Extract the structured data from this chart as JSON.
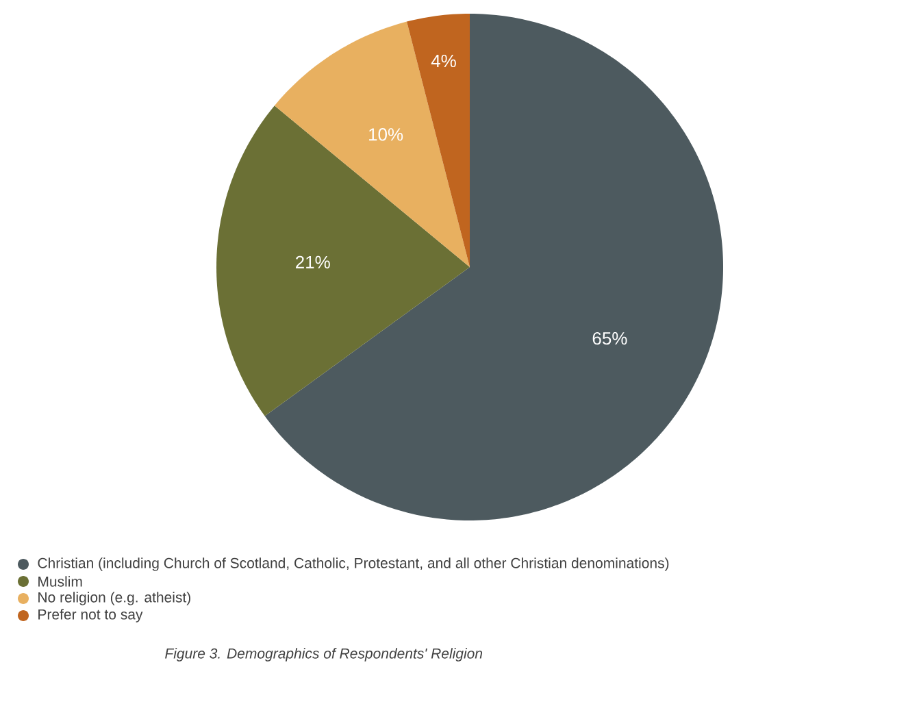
{
  "chart_data": {
    "type": "pie",
    "categories": [
      "Christian (including Church of Scotland, Catholic, Protestant, and all other Christian denominations)",
      "Muslim",
      "No religion (e.g. atheist)",
      "Prefer not to say"
    ],
    "values": [
      65,
      21,
      10,
      4
    ],
    "value_labels": [
      "65%",
      "21%",
      "10%",
      "4%"
    ],
    "colors": [
      "#4d5a5f",
      "#6b7035",
      "#e8b060",
      "#c0651f"
    ],
    "legend": "bottom",
    "annotations": [
      "Figure 3. Demographics of Respondents' Religion"
    ]
  }
}
